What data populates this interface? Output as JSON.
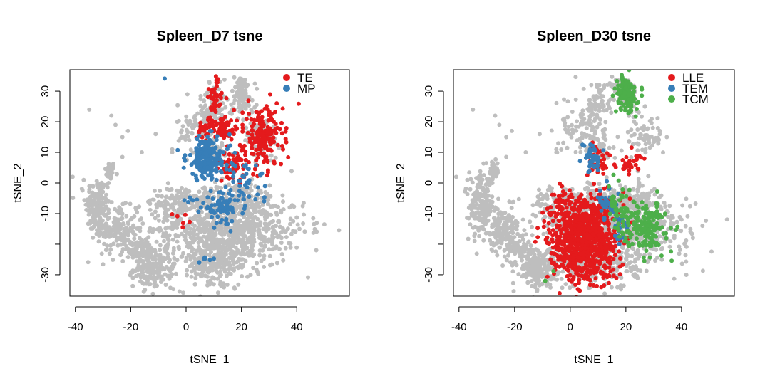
{
  "chart_data": [
    {
      "type": "scatter",
      "title": "Spleen_D7 tsne",
      "xlabel": "tSNE_1",
      "ylabel": "tSNE_2",
      "xlim": [
        -42,
        59
      ],
      "ylim": [
        -37,
        37
      ],
      "xticks": [
        -40,
        -20,
        0,
        20,
        40
      ],
      "yticks": [
        -30,
        -10,
        0,
        10,
        20,
        30
      ],
      "legend_position": "top-right",
      "background_color": "#bebebe",
      "series": [
        {
          "name": "TE",
          "color": "#e41a1c"
        },
        {
          "name": "MP",
          "color": "#377eb8"
        }
      ]
    },
    {
      "type": "scatter",
      "title": "Spleen_D30 tsne",
      "xlabel": "tSNE_1",
      "ylabel": "tSNE_2",
      "xlim": [
        -42,
        59
      ],
      "ylim": [
        -37,
        37
      ],
      "xticks": [
        -40,
        -20,
        0,
        20,
        40
      ],
      "yticks": [
        -30,
        -10,
        0,
        10,
        20,
        30
      ],
      "legend_position": "top-right",
      "background_color": "#bebebe",
      "series": [
        {
          "name": "LLE",
          "color": "#e41a1c"
        },
        {
          "name": "TEM",
          "color": "#377eb8"
        },
        {
          "name": "TCM",
          "color": "#4daf4a"
        }
      ]
    }
  ]
}
